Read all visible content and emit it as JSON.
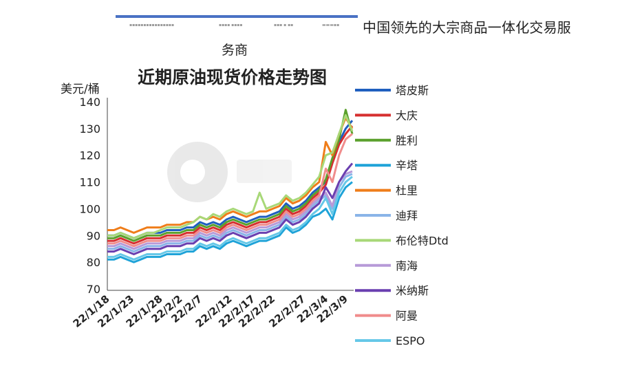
{
  "header": {
    "line1": "中国领先的大宗商品一体化交易服",
    "line2": "务商"
  },
  "chart_data": {
    "type": "line",
    "title": "近期原油现货价格走势图",
    "ylabel": "美元/桶",
    "xlabel": "",
    "ylim": [
      70,
      140
    ],
    "yticks": [
      70,
      80,
      90,
      100,
      110,
      120,
      130,
      140
    ],
    "xticks": [
      "22/1/18",
      "22/1/23",
      "22/1/28",
      "22/2/2",
      "22/2/7",
      "22/2/12",
      "22/2/17",
      "22/2/22",
      "22/2/27",
      "22/3/4",
      "22/3/9"
    ],
    "grid": false,
    "legend": "right",
    "x": [
      "22/1/18",
      "22/1/19",
      "22/1/20",
      "22/1/21",
      "22/1/24",
      "22/1/25",
      "22/1/26",
      "22/1/27",
      "22/1/28",
      "22/1/31",
      "22/2/1",
      "22/2/2",
      "22/2/3",
      "22/2/4",
      "22/2/7",
      "22/2/8",
      "22/2/9",
      "22/2/10",
      "22/2/11",
      "22/2/14",
      "22/2/15",
      "22/2/16",
      "22/2/17",
      "22/2/18",
      "22/2/21",
      "22/2/22",
      "22/2/23",
      "22/2/24",
      "22/2/25",
      "22/2/28",
      "22/3/1",
      "22/3/2",
      "22/3/3",
      "22/3/4",
      "22/3/7",
      "22/3/8",
      "22/3/9",
      "22/3/10"
    ],
    "series": [
      {
        "name": "塔皮斯",
        "color": "#1f5fbf",
        "values": [
          90,
          90,
          91,
          90,
          89,
          90,
          91,
          91,
          91,
          92,
          92,
          92,
          93,
          93,
          95,
          94,
          95,
          94,
          96,
          97,
          96,
          95,
          96,
          97,
          97,
          98,
          99,
          102,
          100,
          101,
          103,
          106,
          108,
          110,
          118,
          125,
          130,
          133
        ]
      },
      {
        "name": "大庆",
        "color": "#d62f2f",
        "values": [
          88,
          88,
          89,
          88,
          87,
          88,
          89,
          89,
          89,
          90,
          90,
          90,
          91,
          91,
          93,
          92,
          93,
          92,
          94,
          95,
          94,
          93,
          94,
          95,
          95,
          96,
          97,
          100,
          98,
          99,
          101,
          104,
          106,
          109,
          117,
          124,
          128,
          131
        ]
      },
      {
        "name": "胜利",
        "color": "#5aa02c",
        "values": [
          89,
          89,
          90,
          89,
          88,
          89,
          90,
          90,
          90,
          91,
          91,
          91,
          92,
          92,
          94,
          93,
          94,
          93,
          95,
          96,
          95,
          94,
          95,
          96,
          96,
          97,
          98,
          101,
          99,
          100,
          102,
          105,
          107,
          111,
          119,
          126,
          137,
          128
        ]
      },
      {
        "name": "辛塔",
        "color": "#1fa3d8",
        "values": [
          81,
          81,
          82,
          81,
          80,
          81,
          82,
          82,
          82,
          83,
          83,
          83,
          84,
          84,
          86,
          85,
          86,
          85,
          87,
          88,
          87,
          86,
          87,
          88,
          88,
          89,
          90,
          93,
          91,
          92,
          94,
          97,
          98,
          100,
          96,
          104,
          108,
          110
        ]
      },
      {
        "name": "杜里",
        "color": "#ef7d1a",
        "values": [
          92,
          92,
          93,
          92,
          91,
          92,
          93,
          93,
          93,
          94,
          94,
          94,
          95,
          95,
          97,
          96,
          97,
          96,
          98,
          99,
          98,
          97,
          98,
          99,
          99,
          100,
          101,
          104,
          102,
          103,
          105,
          108,
          110,
          125,
          120,
          128,
          134,
          130
        ]
      },
      {
        "name": "迪拜",
        "color": "#8ab4e8",
        "values": [
          85,
          85,
          86,
          85,
          84,
          85,
          86,
          86,
          86,
          87,
          87,
          87,
          88,
          88,
          90,
          89,
          90,
          89,
          91,
          92,
          91,
          90,
          91,
          92,
          92,
          93,
          94,
          97,
          95,
          96,
          98,
          101,
          103,
          105,
          100,
          108,
          112,
          113
        ]
      },
      {
        "name": "布伦特Dtd",
        "color": "#a8d878",
        "values": [
          90,
          90,
          91,
          90,
          89,
          90,
          91,
          91,
          92,
          93,
          93,
          93,
          94,
          95,
          97,
          96,
          98,
          97,
          99,
          100,
          99,
          98,
          99,
          106,
          100,
          101,
          102,
          105,
          103,
          104,
          106,
          109,
          112,
          120,
          121,
          128,
          135,
          129
        ]
      },
      {
        "name": "南海",
        "color": "#b79ad8",
        "values": [
          86,
          86,
          87,
          86,
          85,
          86,
          87,
          87,
          87,
          88,
          88,
          88,
          89,
          89,
          91,
          90,
          91,
          90,
          92,
          93,
          92,
          91,
          92,
          93,
          93,
          94,
          95,
          98,
          96,
          97,
          99,
          102,
          104,
          106,
          101,
          110,
          113,
          114
        ]
      },
      {
        "name": "米纳斯",
        "color": "#6a3fb0",
        "values": [
          84,
          84,
          85,
          84,
          83,
          84,
          85,
          85,
          85,
          86,
          86,
          86,
          87,
          87,
          89,
          88,
          89,
          88,
          90,
          91,
          90,
          89,
          90,
          91,
          91,
          92,
          93,
          96,
          94,
          95,
          97,
          100,
          102,
          108,
          104,
          110,
          114,
          117
        ]
      },
      {
        "name": "阿曼",
        "color": "#f08c8c",
        "values": [
          87,
          87,
          88,
          87,
          86,
          87,
          88,
          88,
          88,
          89,
          89,
          89,
          90,
          90,
          92,
          91,
          92,
          91,
          93,
          94,
          93,
          92,
          93,
          94,
          94,
          95,
          96,
          99,
          97,
          98,
          100,
          103,
          105,
          115,
          110,
          120,
          126,
          128
        ]
      },
      {
        "name": "ESPO",
        "color": "#66c8e8",
        "values": [
          82,
          82,
          83,
          82,
          81,
          82,
          83,
          83,
          83,
          84,
          84,
          84,
          85,
          85,
          87,
          86,
          87,
          86,
          88,
          89,
          88,
          87,
          88,
          89,
          89,
          90,
          91,
          94,
          92,
          93,
          95,
          98,
          100,
          104,
          98,
          106,
          110,
          112
        ]
      }
    ]
  }
}
